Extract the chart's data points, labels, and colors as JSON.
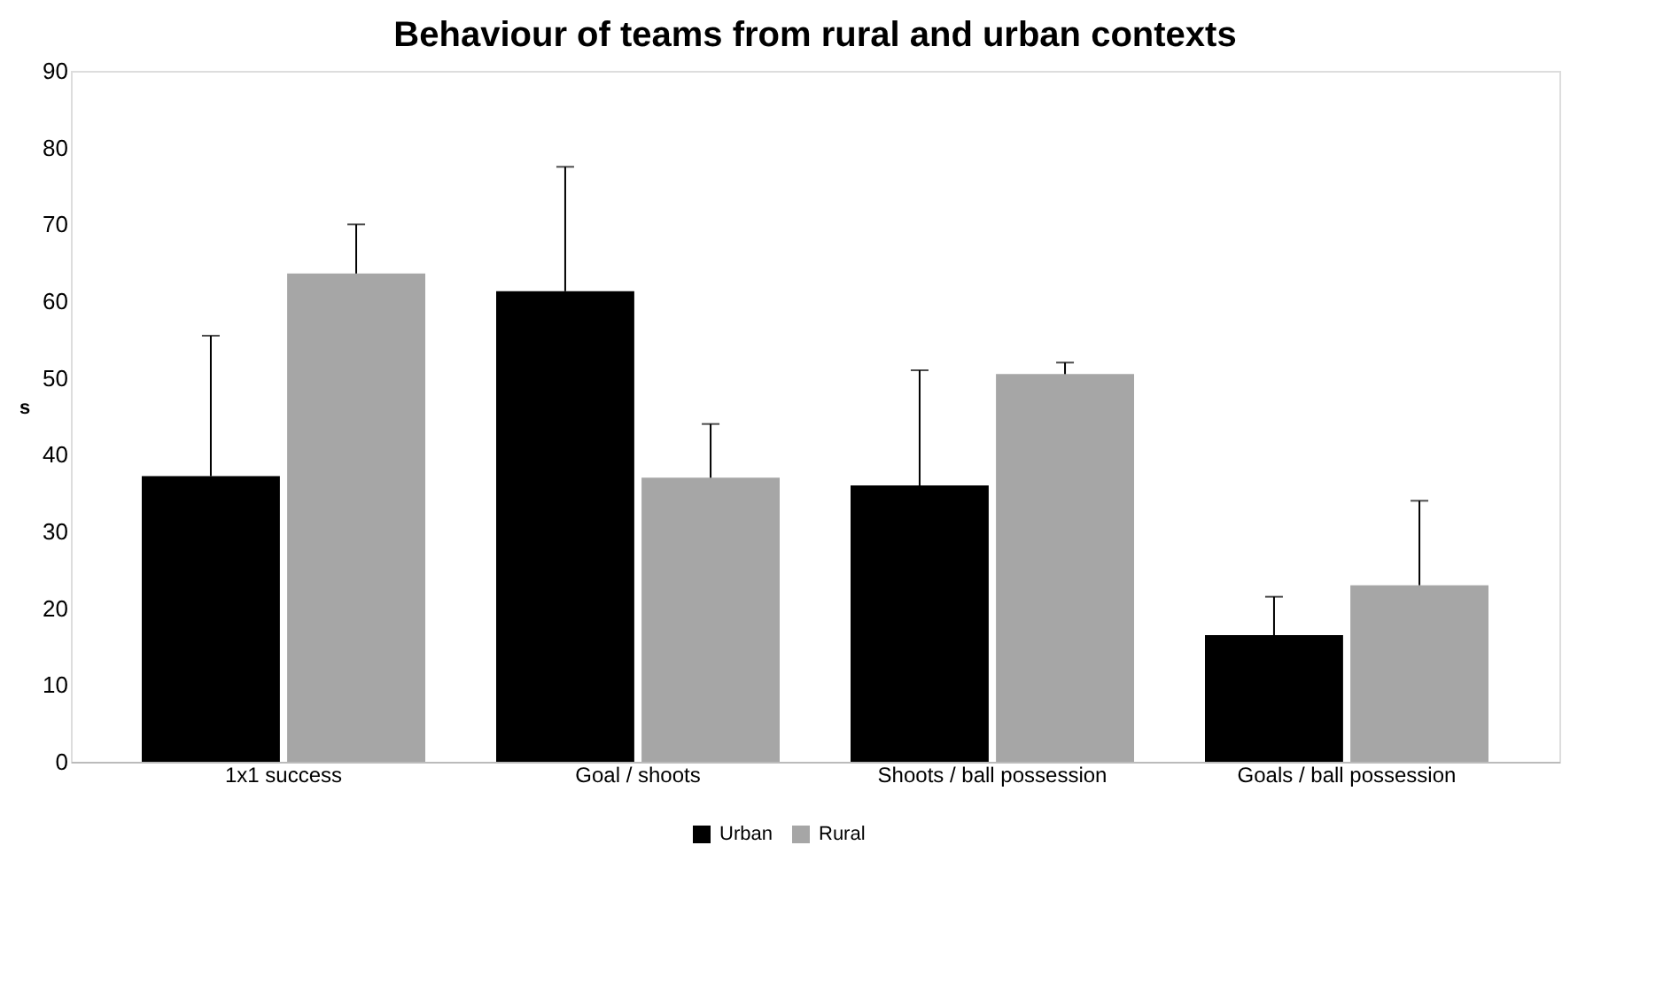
{
  "chart_data": {
    "type": "bar",
    "title": "Behaviour of teams from rural and urban contexts",
    "ylabel": "s",
    "categories": [
      "1x1 success",
      "Goal / shoots",
      "Shoots / ball possession",
      "Goals / ball possession"
    ],
    "series": [
      {
        "name": "Urban",
        "color": "#000000",
        "values": [
          37.2,
          61.3,
          36,
          16.5
        ],
        "errors": [
          [
            37.2,
            55.5
          ],
          [
            61.3,
            77.5
          ],
          [
            36,
            51
          ],
          [
            16.5,
            21.5
          ]
        ]
      },
      {
        "name": "Rural",
        "color": "#a6a6a6",
        "values": [
          63.6,
          37,
          50.5,
          23
        ],
        "errors": [
          [
            63.6,
            70
          ],
          [
            37,
            44
          ],
          [
            50.5,
            52
          ],
          [
            23,
            34
          ]
        ]
      }
    ],
    "ylim": [
      0,
      90
    ],
    "yticks": [
      0,
      10,
      20,
      30,
      40,
      50,
      60,
      70,
      80,
      90
    ],
    "grid": false,
    "legend": "bottom"
  }
}
